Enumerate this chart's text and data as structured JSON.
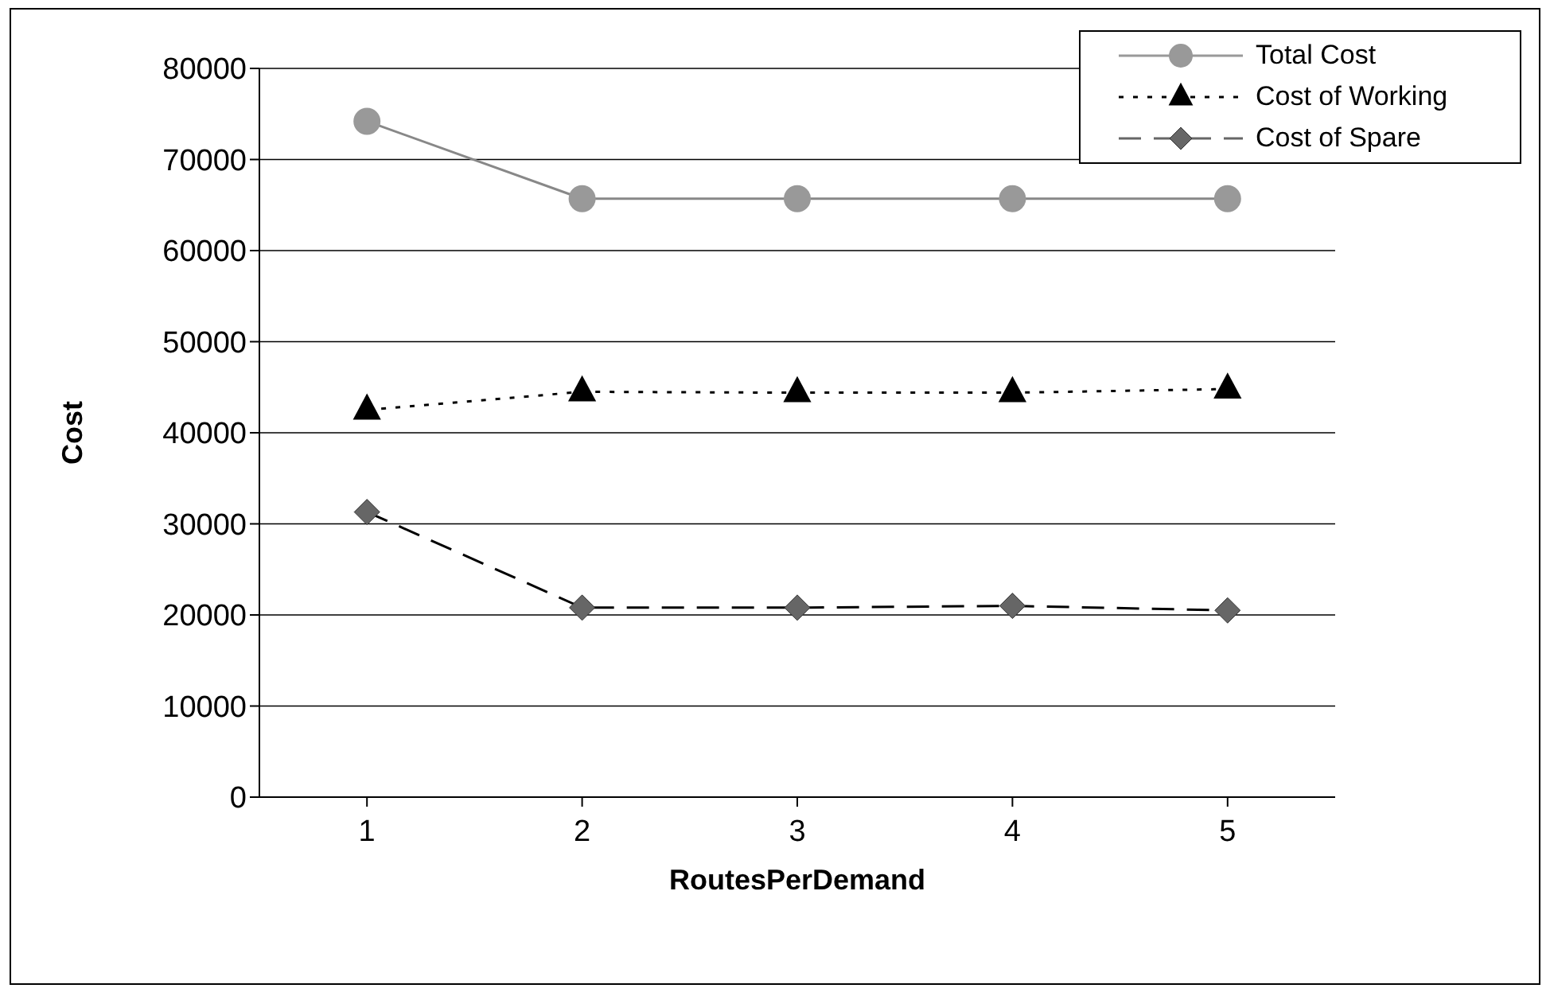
{
  "chart_data": {
    "type": "line",
    "xlabel": "RoutesPerDemand",
    "ylabel": "Cost",
    "categories": [
      "1",
      "2",
      "3",
      "4",
      "5"
    ],
    "series": [
      {
        "name": "Total Cost",
        "color": "#999999",
        "marker": "circle",
        "line_style": "solid",
        "values": [
          74200,
          65700,
          65700,
          65700,
          65700
        ]
      },
      {
        "name": "Cost of Working",
        "color": "#000000",
        "marker": "triangle",
        "line_style": "dotted",
        "values": [
          42500,
          44500,
          44400,
          44400,
          44800
        ]
      },
      {
        "name": "Cost of Spare",
        "color": "#666666",
        "marker": "diamond",
        "line_style": "dashed",
        "values": [
          31300,
          20800,
          20800,
          21000,
          20500
        ]
      }
    ],
    "ylim": [
      0,
      80000
    ],
    "yticks": [
      0,
      10000,
      20000,
      30000,
      40000,
      50000,
      60000,
      70000,
      80000
    ],
    "grid": "y",
    "legend": "top right"
  }
}
